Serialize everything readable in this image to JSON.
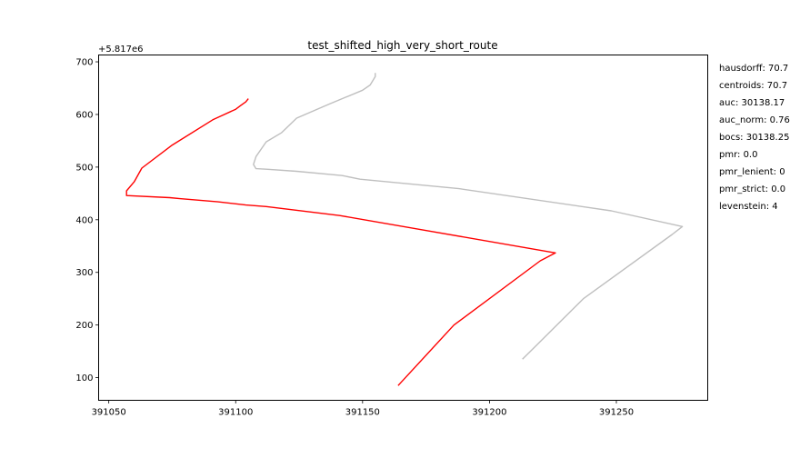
{
  "colors": {
    "route": "#ff0000",
    "reference": "#bfbfbf",
    "axes": "#000000"
  },
  "chart_data": {
    "type": "line",
    "title": "test_shifted_high_very_short_route",
    "xlabel": "",
    "ylabel": "",
    "y_offset_label": "+5.817e6",
    "xlim": [
      391046,
      391286
    ],
    "ylim": [
      57,
      713
    ],
    "x_ticks": [
      391050,
      391100,
      391150,
      391200,
      391250
    ],
    "x_tick_labels": [
      "391050",
      "391100",
      "391150",
      "391200",
      "391250"
    ],
    "y_ticks": [
      100,
      200,
      300,
      400,
      500,
      600,
      700
    ],
    "y_tick_labels": [
      "100",
      "200",
      "300",
      "400",
      "500",
      "600",
      "700"
    ],
    "grid": false,
    "legend": "none",
    "series": [
      {
        "color": "#bfbfbf",
        "x": [
          391213,
          391237,
          391272,
          391276,
          391248,
          391188,
          391149,
          391142,
          391124,
          391112,
          391108,
          391107,
          391108,
          391112,
          391118,
          391124,
          391137,
          391150,
          391153,
          391155,
          391155
        ],
        "y": [
          135,
          250,
          372,
          387,
          417,
          459,
          477,
          484,
          492,
          496,
          497,
          505,
          520,
          548,
          565,
          593,
          620,
          646,
          656,
          672,
          679
        ]
      },
      {
        "color": "#ff0000",
        "x": [
          391164,
          391186,
          391220,
          391226,
          391141,
          391112,
          391104,
          391093,
          391078,
          391074,
          391057,
          391057,
          391060,
          391063,
          391075,
          391091,
          391100,
          391102,
          391104,
          391105
        ],
        "y": [
          85,
          200,
          322,
          337,
          408,
          425,
          428,
          434,
          440,
          442,
          446,
          455,
          472,
          498,
          542,
          590,
          610,
          617,
          624,
          630
        ]
      }
    ],
    "side_text": [
      "hausdorff: 70.7",
      "centroids: 70.7",
      "auc: 30138.17",
      "auc_norm: 0.76",
      "bocs: 30138.25",
      "pmr: 0.0",
      "pmr_lenient: 0",
      "pmr_strict: 0.0",
      "levenstein: 4"
    ]
  }
}
